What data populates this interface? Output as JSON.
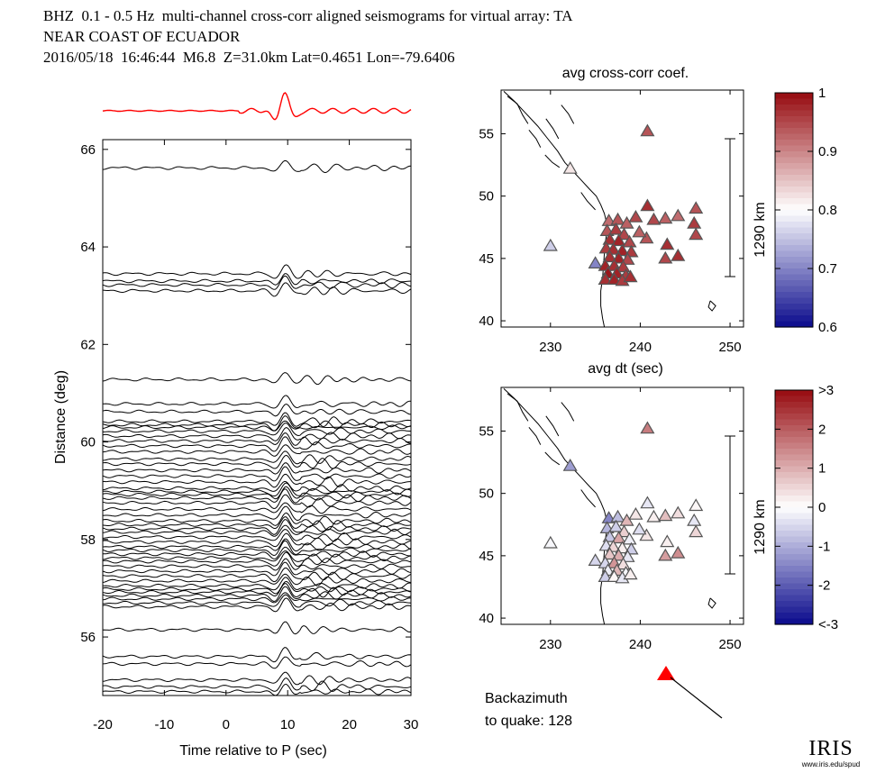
{
  "header": {
    "line1": "BHZ  0.1 - 0.5 Hz  multi-channel cross-corr aligned seismograms for virtual array: TA",
    "line2": "NEAR COAST OF ECUADOR",
    "line3": "2016/05/18  16:46:44  M6.8  Z=31.0km Lat=0.4651 Lon=-79.6406"
  },
  "chart_data": [
    {
      "type": "line",
      "name": "aligned seismograms",
      "xlabel": "Time relative to P (sec)",
      "ylabel": "Distance (deg)",
      "xlim": [
        -20,
        30
      ],
      "ylim": [
        54.8,
        66.2
      ],
      "xticks": [
        "-20",
        "-10",
        "0",
        "10",
        "20",
        "30"
      ],
      "yticks": [
        "56",
        "58",
        "60",
        "62",
        "64",
        "66"
      ],
      "stack_color": "#ff0000",
      "trace_color": "#000000",
      "trace_distances": [
        65.62,
        63.45,
        63.3,
        63.22,
        63.1,
        61.28,
        60.78,
        60.62,
        60.42,
        60.35,
        60.3,
        60.22,
        60.12,
        60.02,
        59.92,
        59.8,
        59.65,
        59.55,
        59.42,
        59.3,
        59.18,
        59.05,
        58.98,
        58.92,
        58.85,
        58.75,
        58.62,
        58.5,
        58.38,
        58.3,
        58.22,
        58.15,
        58.05,
        57.95,
        57.85,
        57.78,
        57.7,
        57.62,
        57.55,
        57.45,
        57.35,
        57.25,
        57.15,
        57.05,
        56.98,
        56.92,
        56.85,
        56.78,
        56.7,
        56.62,
        56.15,
        55.6,
        55.45,
        55.12,
        54.98,
        54.88
      ]
    },
    {
      "type": "scatter",
      "name": "map-coef",
      "title": "avg cross-corr coef.",
      "xlabel": "avg dt (sec)",
      "xlim": [
        224.5,
        251.5
      ],
      "ylim": [
        39.5,
        58.5
      ],
      "xticks": [
        "230",
        "240",
        "250"
      ],
      "yticks": [
        "40",
        "45",
        "50",
        "55"
      ],
      "scalebar_label": "1290 km",
      "colorbar": {
        "min": 0.6,
        "max": 1.0,
        "ticks": [
          "0.6",
          "0.7",
          "0.8",
          "0.9",
          "1"
        ]
      },
      "points": [
        {
          "lon": 240.8,
          "lat": 55.2,
          "v": 0.94
        },
        {
          "lon": 232.2,
          "lat": 52.2,
          "v": 0.82
        },
        {
          "lon": 230.0,
          "lat": 46.0,
          "v": 0.76
        },
        {
          "lon": 235.0,
          "lat": 44.6,
          "v": 0.7
        },
        {
          "lon": 236.5,
          "lat": 48.0,
          "v": 0.92
        },
        {
          "lon": 237.5,
          "lat": 48.1,
          "v": 0.94
        },
        {
          "lon": 238.5,
          "lat": 47.8,
          "v": 0.93
        },
        {
          "lon": 239.5,
          "lat": 48.3,
          "v": 0.95
        },
        {
          "lon": 240.8,
          "lat": 49.2,
          "v": 0.97
        },
        {
          "lon": 241.5,
          "lat": 48.1,
          "v": 0.95
        },
        {
          "lon": 242.8,
          "lat": 48.2,
          "v": 0.93
        },
        {
          "lon": 244.2,
          "lat": 48.4,
          "v": 0.92
        },
        {
          "lon": 246.2,
          "lat": 49.0,
          "v": 0.94
        },
        {
          "lon": 246.0,
          "lat": 47.8,
          "v": 0.96
        },
        {
          "lon": 246.2,
          "lat": 46.9,
          "v": 0.95
        },
        {
          "lon": 243.0,
          "lat": 46.1,
          "v": 0.97
        },
        {
          "lon": 244.2,
          "lat": 45.2,
          "v": 0.97
        },
        {
          "lon": 242.8,
          "lat": 45.0,
          "v": 0.95
        },
        {
          "lon": 240.7,
          "lat": 46.6,
          "v": 0.94
        },
        {
          "lon": 239.9,
          "lat": 47.1,
          "v": 0.93
        },
        {
          "lon": 236.3,
          "lat": 47.2,
          "v": 0.94
        },
        {
          "lon": 237.3,
          "lat": 47.3,
          "v": 0.96
        },
        {
          "lon": 238.2,
          "lat": 46.9,
          "v": 0.95
        },
        {
          "lon": 236.6,
          "lat": 46.5,
          "v": 0.97
        },
        {
          "lon": 237.6,
          "lat": 46.4,
          "v": 0.98
        },
        {
          "lon": 238.8,
          "lat": 46.3,
          "v": 0.95
        },
        {
          "lon": 236.2,
          "lat": 45.8,
          "v": 0.96
        },
        {
          "lon": 237.0,
          "lat": 45.7,
          "v": 0.97
        },
        {
          "lon": 238.0,
          "lat": 45.6,
          "v": 0.98
        },
        {
          "lon": 239.0,
          "lat": 45.5,
          "v": 0.96
        },
        {
          "lon": 236.6,
          "lat": 45.1,
          "v": 0.97
        },
        {
          "lon": 237.6,
          "lat": 45.0,
          "v": 0.98
        },
        {
          "lon": 238.6,
          "lat": 44.9,
          "v": 0.95
        },
        {
          "lon": 236.1,
          "lat": 44.4,
          "v": 0.98
        },
        {
          "lon": 237.1,
          "lat": 44.4,
          "v": 0.97
        },
        {
          "lon": 238.1,
          "lat": 44.3,
          "v": 0.96
        },
        {
          "lon": 236.4,
          "lat": 43.8,
          "v": 0.99
        },
        {
          "lon": 237.4,
          "lat": 43.8,
          "v": 0.98
        },
        {
          "lon": 238.4,
          "lat": 43.6,
          "v": 0.96
        },
        {
          "lon": 236.1,
          "lat": 43.3,
          "v": 0.97
        },
        {
          "lon": 237.1,
          "lat": 43.3,
          "v": 0.98
        },
        {
          "lon": 238.0,
          "lat": 43.2,
          "v": 0.96
        },
        {
          "lon": 238.9,
          "lat": 43.5,
          "v": 0.97
        }
      ]
    },
    {
      "type": "scatter",
      "name": "map-dt",
      "xlabel": "",
      "xlim": [
        224.5,
        251.5
      ],
      "ylim": [
        39.5,
        58.5
      ],
      "xticks": [
        "230",
        "240",
        "250"
      ],
      "yticks": [
        "40",
        "45",
        "50",
        "55"
      ],
      "scalebar_label": "1290 km",
      "colorbar": {
        "min": -3,
        "max": 3,
        "ticks": [
          "<-3",
          "-2",
          "-1",
          "0",
          "1",
          "2",
          ">3"
        ]
      },
      "points": [
        {
          "lon": 240.8,
          "lat": 55.2,
          "v": 1.6
        },
        {
          "lon": 232.2,
          "lat": 52.2,
          "v": -1.2
        },
        {
          "lon": 230.0,
          "lat": 46.0,
          "v": -0.1
        },
        {
          "lon": 235.0,
          "lat": 44.6,
          "v": -0.5
        },
        {
          "lon": 236.5,
          "lat": 48.0,
          "v": -1.5
        },
        {
          "lon": 237.5,
          "lat": 48.1,
          "v": -0.8
        },
        {
          "lon": 238.5,
          "lat": 47.8,
          "v": 0.9
        },
        {
          "lon": 239.5,
          "lat": 48.3,
          "v": 0.3
        },
        {
          "lon": 240.8,
          "lat": 49.2,
          "v": -0.3
        },
        {
          "lon": 241.5,
          "lat": 48.1,
          "v": 0.2
        },
        {
          "lon": 242.8,
          "lat": 48.2,
          "v": 0.8
        },
        {
          "lon": 244.2,
          "lat": 48.4,
          "v": 0.4
        },
        {
          "lon": 246.2,
          "lat": 49.0,
          "v": 0.1
        },
        {
          "lon": 246.0,
          "lat": 47.8,
          "v": -0.3
        },
        {
          "lon": 246.2,
          "lat": 46.9,
          "v": 0.5
        },
        {
          "lon": 243.0,
          "lat": 46.1,
          "v": 0.2
        },
        {
          "lon": 244.2,
          "lat": 45.2,
          "v": 1.4
        },
        {
          "lon": 242.8,
          "lat": 45.0,
          "v": 1.2
        },
        {
          "lon": 240.7,
          "lat": 46.6,
          "v": 0.3
        },
        {
          "lon": 239.9,
          "lat": 47.1,
          "v": -0.4
        },
        {
          "lon": 236.3,
          "lat": 47.2,
          "v": -0.9
        },
        {
          "lon": 237.3,
          "lat": 47.3,
          "v": -0.6
        },
        {
          "lon": 238.2,
          "lat": 46.9,
          "v": 0.6
        },
        {
          "lon": 236.6,
          "lat": 46.5,
          "v": -0.7
        },
        {
          "lon": 237.6,
          "lat": 46.4,
          "v": 1.1
        },
        {
          "lon": 238.8,
          "lat": 46.3,
          "v": -0.2
        },
        {
          "lon": 236.2,
          "lat": 45.8,
          "v": -0.4
        },
        {
          "lon": 237.0,
          "lat": 45.7,
          "v": 0.5
        },
        {
          "lon": 238.0,
          "lat": 45.6,
          "v": 0.2
        },
        {
          "lon": 239.0,
          "lat": 45.5,
          "v": -0.6
        },
        {
          "lon": 236.6,
          "lat": 45.1,
          "v": 0.7
        },
        {
          "lon": 237.6,
          "lat": 45.0,
          "v": 1.0
        },
        {
          "lon": 238.6,
          "lat": 44.9,
          "v": -0.3
        },
        {
          "lon": 236.1,
          "lat": 44.4,
          "v": -0.5
        },
        {
          "lon": 237.1,
          "lat": 44.4,
          "v": 1.3
        },
        {
          "lon": 238.1,
          "lat": 44.3,
          "v": 0.4
        },
        {
          "lon": 236.4,
          "lat": 43.8,
          "v": -0.2
        },
        {
          "lon": 237.4,
          "lat": 43.8,
          "v": 0.9
        },
        {
          "lon": 238.4,
          "lat": 43.6,
          "v": -0.1
        },
        {
          "lon": 236.1,
          "lat": 43.3,
          "v": -0.6
        },
        {
          "lon": 237.1,
          "lat": 43.3,
          "v": 0.1
        },
        {
          "lon": 238.0,
          "lat": 43.2,
          "v": -0.3
        },
        {
          "lon": 238.9,
          "lat": 43.5,
          "v": 0.2
        }
      ]
    }
  ],
  "backazimuth": {
    "label_line1": "Backazimuth",
    "label_line2": "to quake:  128",
    "degrees": 128,
    "marker_color": "#ff0000"
  },
  "logo": {
    "word": "IRIS",
    "url": "www.iris.edu/spud"
  }
}
